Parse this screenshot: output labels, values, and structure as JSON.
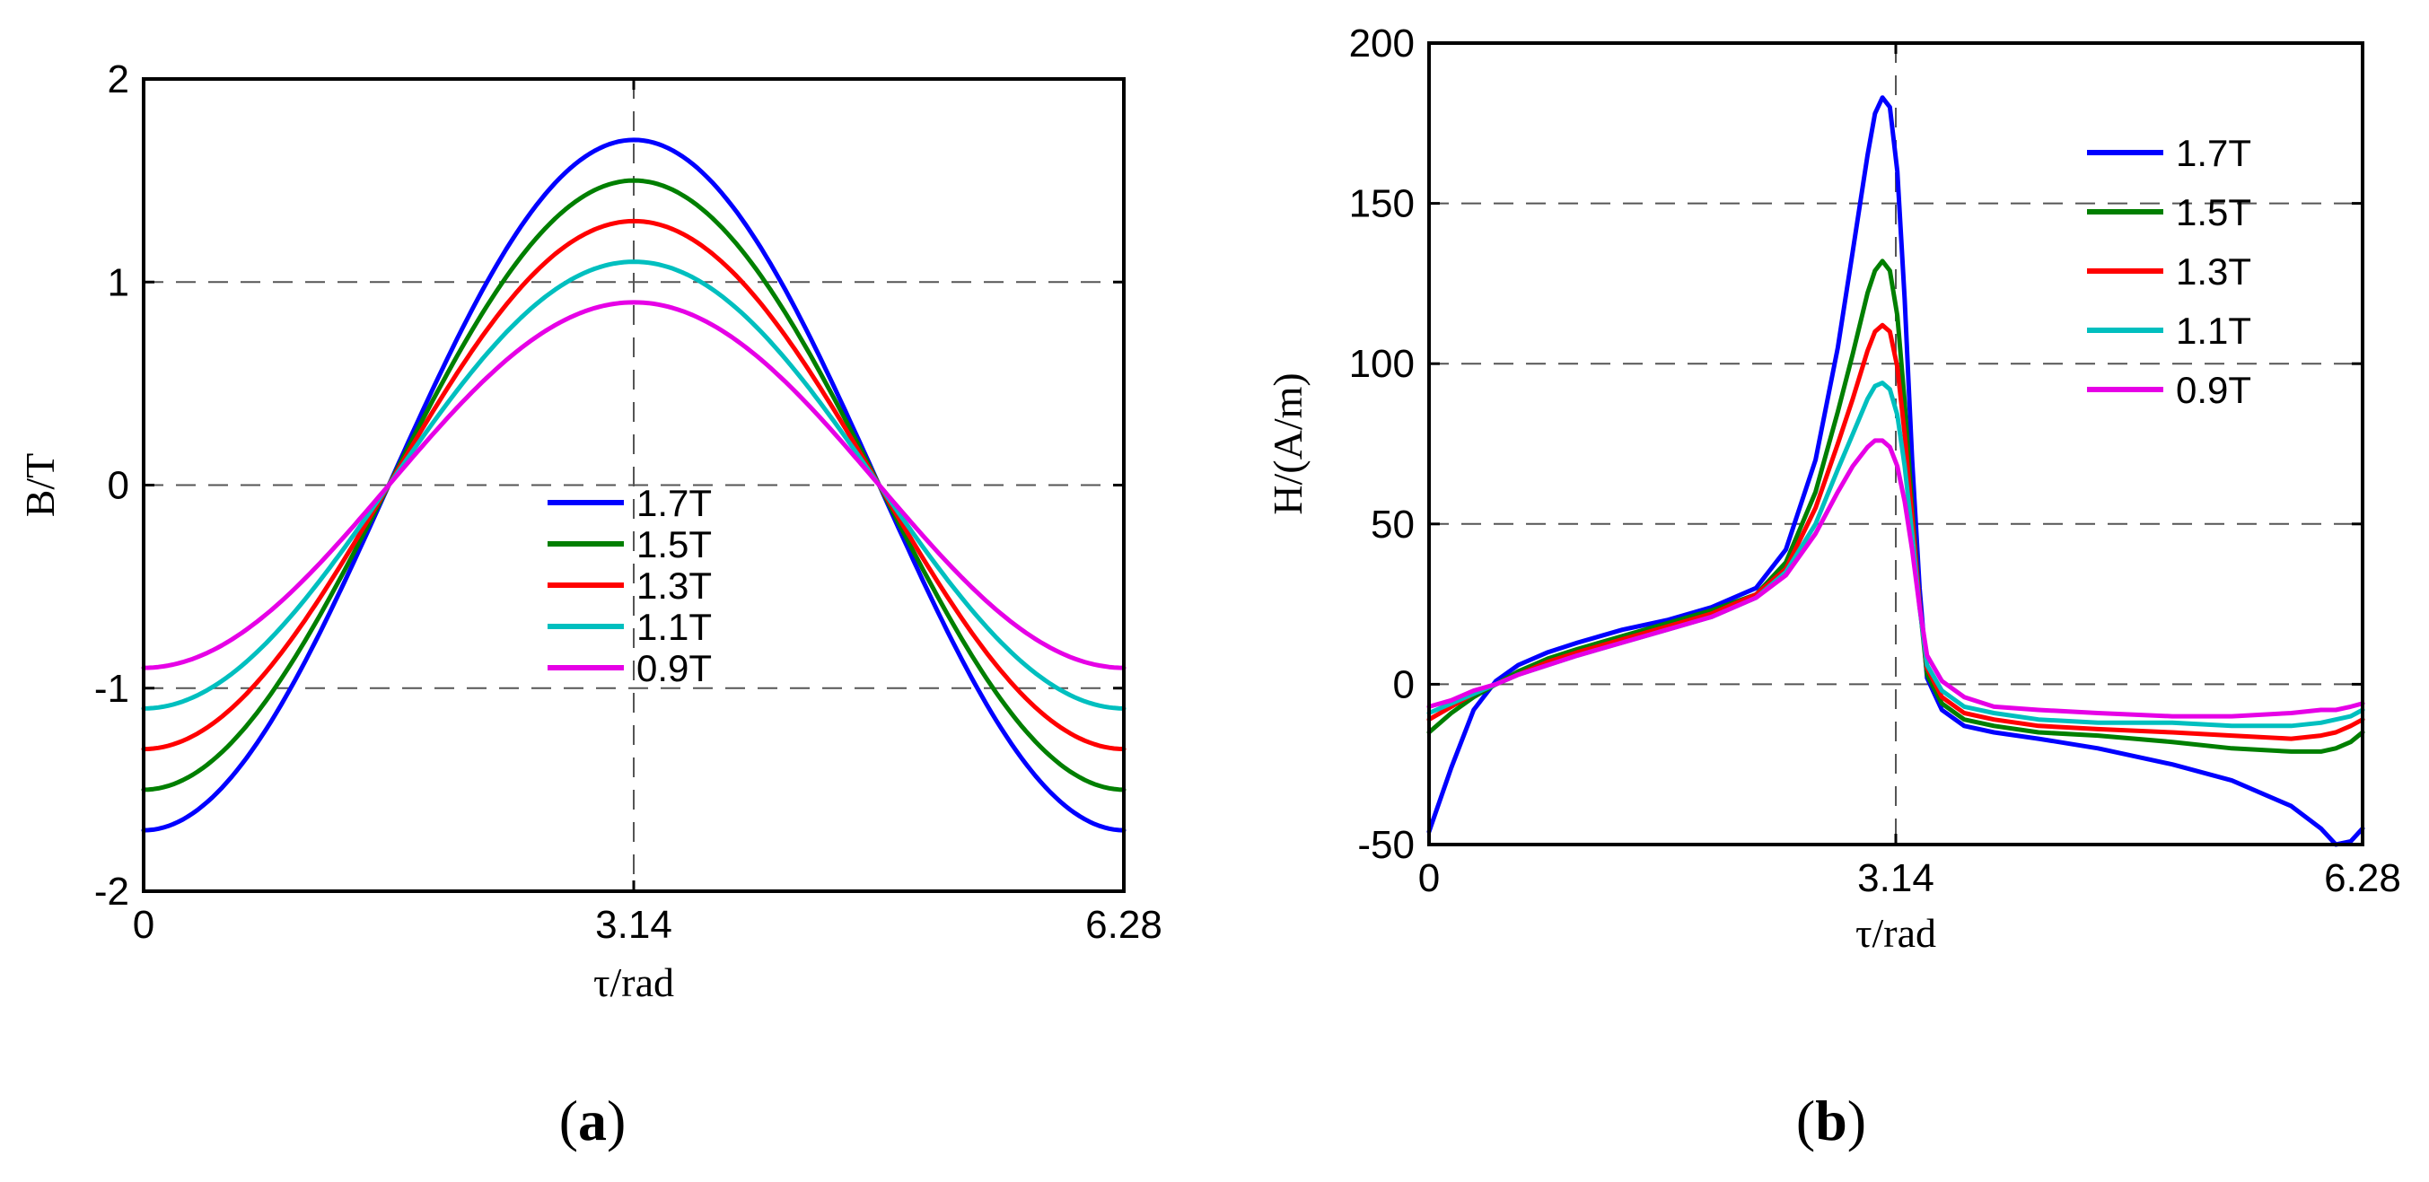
{
  "chart_data": [
    {
      "type": "line",
      "caption_letter": "a",
      "xlabel": "τ/rad",
      "ylabel": "B/T",
      "xlim": [
        0,
        6.28
      ],
      "ylim": [
        -2,
        2
      ],
      "xticks": [
        0,
        3.14,
        6.28
      ],
      "xtick_labels": [
        "0",
        "3.14",
        "6.28"
      ],
      "yticks": [
        -2,
        -1,
        0,
        1,
        2
      ],
      "ytick_labels": [
        "-2",
        "-1",
        "0",
        "1",
        "2"
      ],
      "grid": "dashed",
      "legend_position": "center-bottom",
      "series": [
        {
          "name": "1.7T",
          "color": "#0000ff",
          "amplitude": 1.7
        },
        {
          "name": "1.5T",
          "color": "#007f00",
          "amplitude": 1.5
        },
        {
          "name": "1.3T",
          "color": "#ff0000",
          "amplitude": 1.3
        },
        {
          "name": "1.1T",
          "color": "#00bfbf",
          "amplitude": 1.1
        },
        {
          "name": "0.9T",
          "color": "#e600e6",
          "amplitude": 0.9
        }
      ],
      "function": "B = -amplitude * cos(x)"
    },
    {
      "type": "line",
      "caption_letter": "b",
      "xlabel": "τ/rad",
      "ylabel": "H/(A/m)",
      "xlim": [
        0,
        6.28
      ],
      "ylim": [
        -50,
        200
      ],
      "xticks": [
        0,
        3.14,
        6.28
      ],
      "xtick_labels": [
        "0",
        "3.14",
        "6.28"
      ],
      "yticks": [
        -50,
        0,
        50,
        100,
        150,
        200
      ],
      "ytick_labels": [
        "-50",
        "0",
        "50",
        "100",
        "150",
        "200"
      ],
      "grid": "dashed",
      "legend_position": "top-right",
      "x": [
        0,
        0.15,
        0.3,
        0.45,
        0.6,
        0.8,
        1.0,
        1.3,
        1.6,
        1.9,
        2.2,
        2.4,
        2.6,
        2.75,
        2.85,
        2.95,
        3.0,
        3.05,
        3.1,
        3.15,
        3.2,
        3.25,
        3.3,
        3.35,
        3.45,
        3.6,
        3.8,
        4.1,
        4.5,
        5.0,
        5.4,
        5.8,
        6.0,
        6.1,
        6.2,
        6.28
      ],
      "series": [
        {
          "name": "1.7T",
          "color": "#0000ff",
          "values": [
            -46,
            -26,
            -8,
            1,
            6,
            10,
            13,
            17,
            20,
            24,
            30,
            42,
            70,
            105,
            135,
            165,
            178,
            183,
            180,
            160,
            120,
            70,
            30,
            2,
            -8,
            -13,
            -15,
            -17,
            -20,
            -25,
            -30,
            -38,
            -45,
            -50,
            -49,
            -45
          ]
        },
        {
          "name": "1.5T",
          "color": "#007f00",
          "values": [
            -15,
            -9,
            -4,
            0,
            4,
            8,
            11,
            15,
            19,
            23,
            28,
            38,
            60,
            85,
            103,
            122,
            129,
            132,
            129,
            115,
            88,
            55,
            25,
            3,
            -6,
            -11,
            -13,
            -15,
            -16,
            -18,
            -20,
            -21,
            -21,
            -20,
            -18,
            -15
          ]
        },
        {
          "name": "1.3T",
          "color": "#ff0000",
          "values": [
            -11,
            -7,
            -3,
            0,
            3,
            7,
            10,
            14,
            18,
            22,
            28,
            36,
            55,
            75,
            89,
            104,
            110,
            112,
            110,
            99,
            78,
            52,
            25,
            5,
            -4,
            -9,
            -11,
            -13,
            -14,
            -15,
            -16,
            -17,
            -16,
            -15,
            -13,
            -11
          ]
        },
        {
          "name": "1.1T",
          "color": "#00bfbf",
          "values": [
            -9,
            -6,
            -3,
            0,
            3,
            6,
            9,
            13,
            17,
            21,
            27,
            35,
            50,
            67,
            78,
            89,
            93,
            94,
            92,
            84,
            68,
            47,
            24,
            6,
            -2,
            -7,
            -9,
            -11,
            -12,
            -12,
            -13,
            -13,
            -12,
            -11,
            -10,
            -8
          ]
        },
        {
          "name": "0.9T",
          "color": "#e600e6",
          "values": [
            -7,
            -5,
            -2,
            0,
            3,
            6,
            9,
            13,
            17,
            21,
            27,
            34,
            47,
            60,
            68,
            74,
            76,
            76,
            74,
            68,
            57,
            42,
            24,
            9,
            1,
            -4,
            -7,
            -8,
            -9,
            -10,
            -10,
            -9,
            -8,
            -8,
            -7,
            -6
          ]
        }
      ]
    }
  ]
}
